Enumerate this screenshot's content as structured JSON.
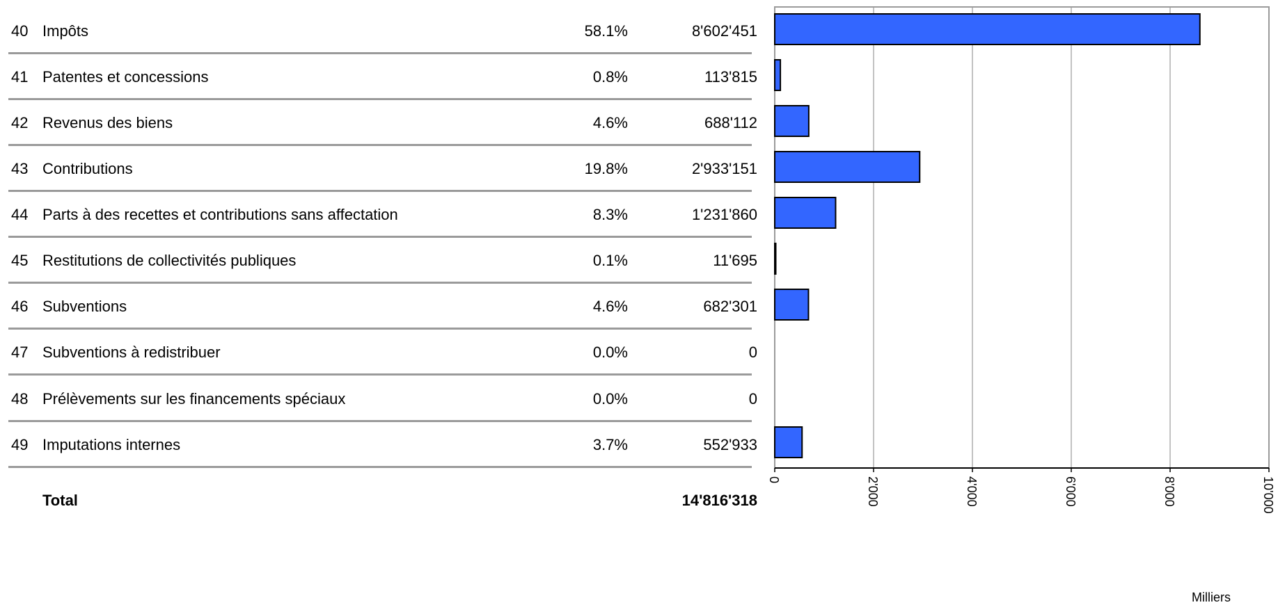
{
  "table": {
    "rows": [
      {
        "code": "40",
        "label": "Impôts",
        "pct": "58.1%",
        "amount": "8'602'451"
      },
      {
        "code": "41",
        "label": "Patentes et concessions",
        "pct": "0.8%",
        "amount": "113'815"
      },
      {
        "code": "42",
        "label": "Revenus des biens",
        "pct": "4.6%",
        "amount": "688'112"
      },
      {
        "code": "43",
        "label": "Contributions",
        "pct": "19.8%",
        "amount": "2'933'151"
      },
      {
        "code": "44",
        "label": "Parts à des recettes et contributions sans affectation",
        "pct": "8.3%",
        "amount": "1'231'860"
      },
      {
        "code": "45",
        "label": "Restitutions de collectivités publiques",
        "pct": "0.1%",
        "amount": "11'695"
      },
      {
        "code": "46",
        "label": "Subventions",
        "pct": "4.6%",
        "amount": "682'301"
      },
      {
        "code": "47",
        "label": "Subventions à redistribuer",
        "pct": "0.0%",
        "amount": "0"
      },
      {
        "code": "48",
        "label": "Prélèvements sur les financements spéciaux",
        "pct": "0.0%",
        "amount": "0"
      },
      {
        "code": "49",
        "label": "Imputations internes",
        "pct": "3.7%",
        "amount": "552'933"
      }
    ],
    "total_label": "Total",
    "total_amount": "14'816'318"
  },
  "chart_data": {
    "type": "bar",
    "orientation": "horizontal",
    "categories": [
      "40",
      "41",
      "42",
      "43",
      "44",
      "45",
      "46",
      "47",
      "48",
      "49"
    ],
    "values": [
      8602.451,
      113.815,
      688.112,
      2933.151,
      1231.86,
      11.695,
      682.301,
      0,
      0,
      552.933
    ],
    "xlim": [
      0,
      10000
    ],
    "x_ticks": [
      "0",
      "2'000",
      "4'000",
      "6'000",
      "8'000",
      "10'000"
    ],
    "x_tick_values": [
      0,
      2000,
      4000,
      6000,
      8000,
      10000
    ],
    "unit_label": "Milliers",
    "grid": true,
    "bar_color": "#3366ff",
    "bar_edge_color": "#000000",
    "grid_color": "#9a9a9a"
  }
}
